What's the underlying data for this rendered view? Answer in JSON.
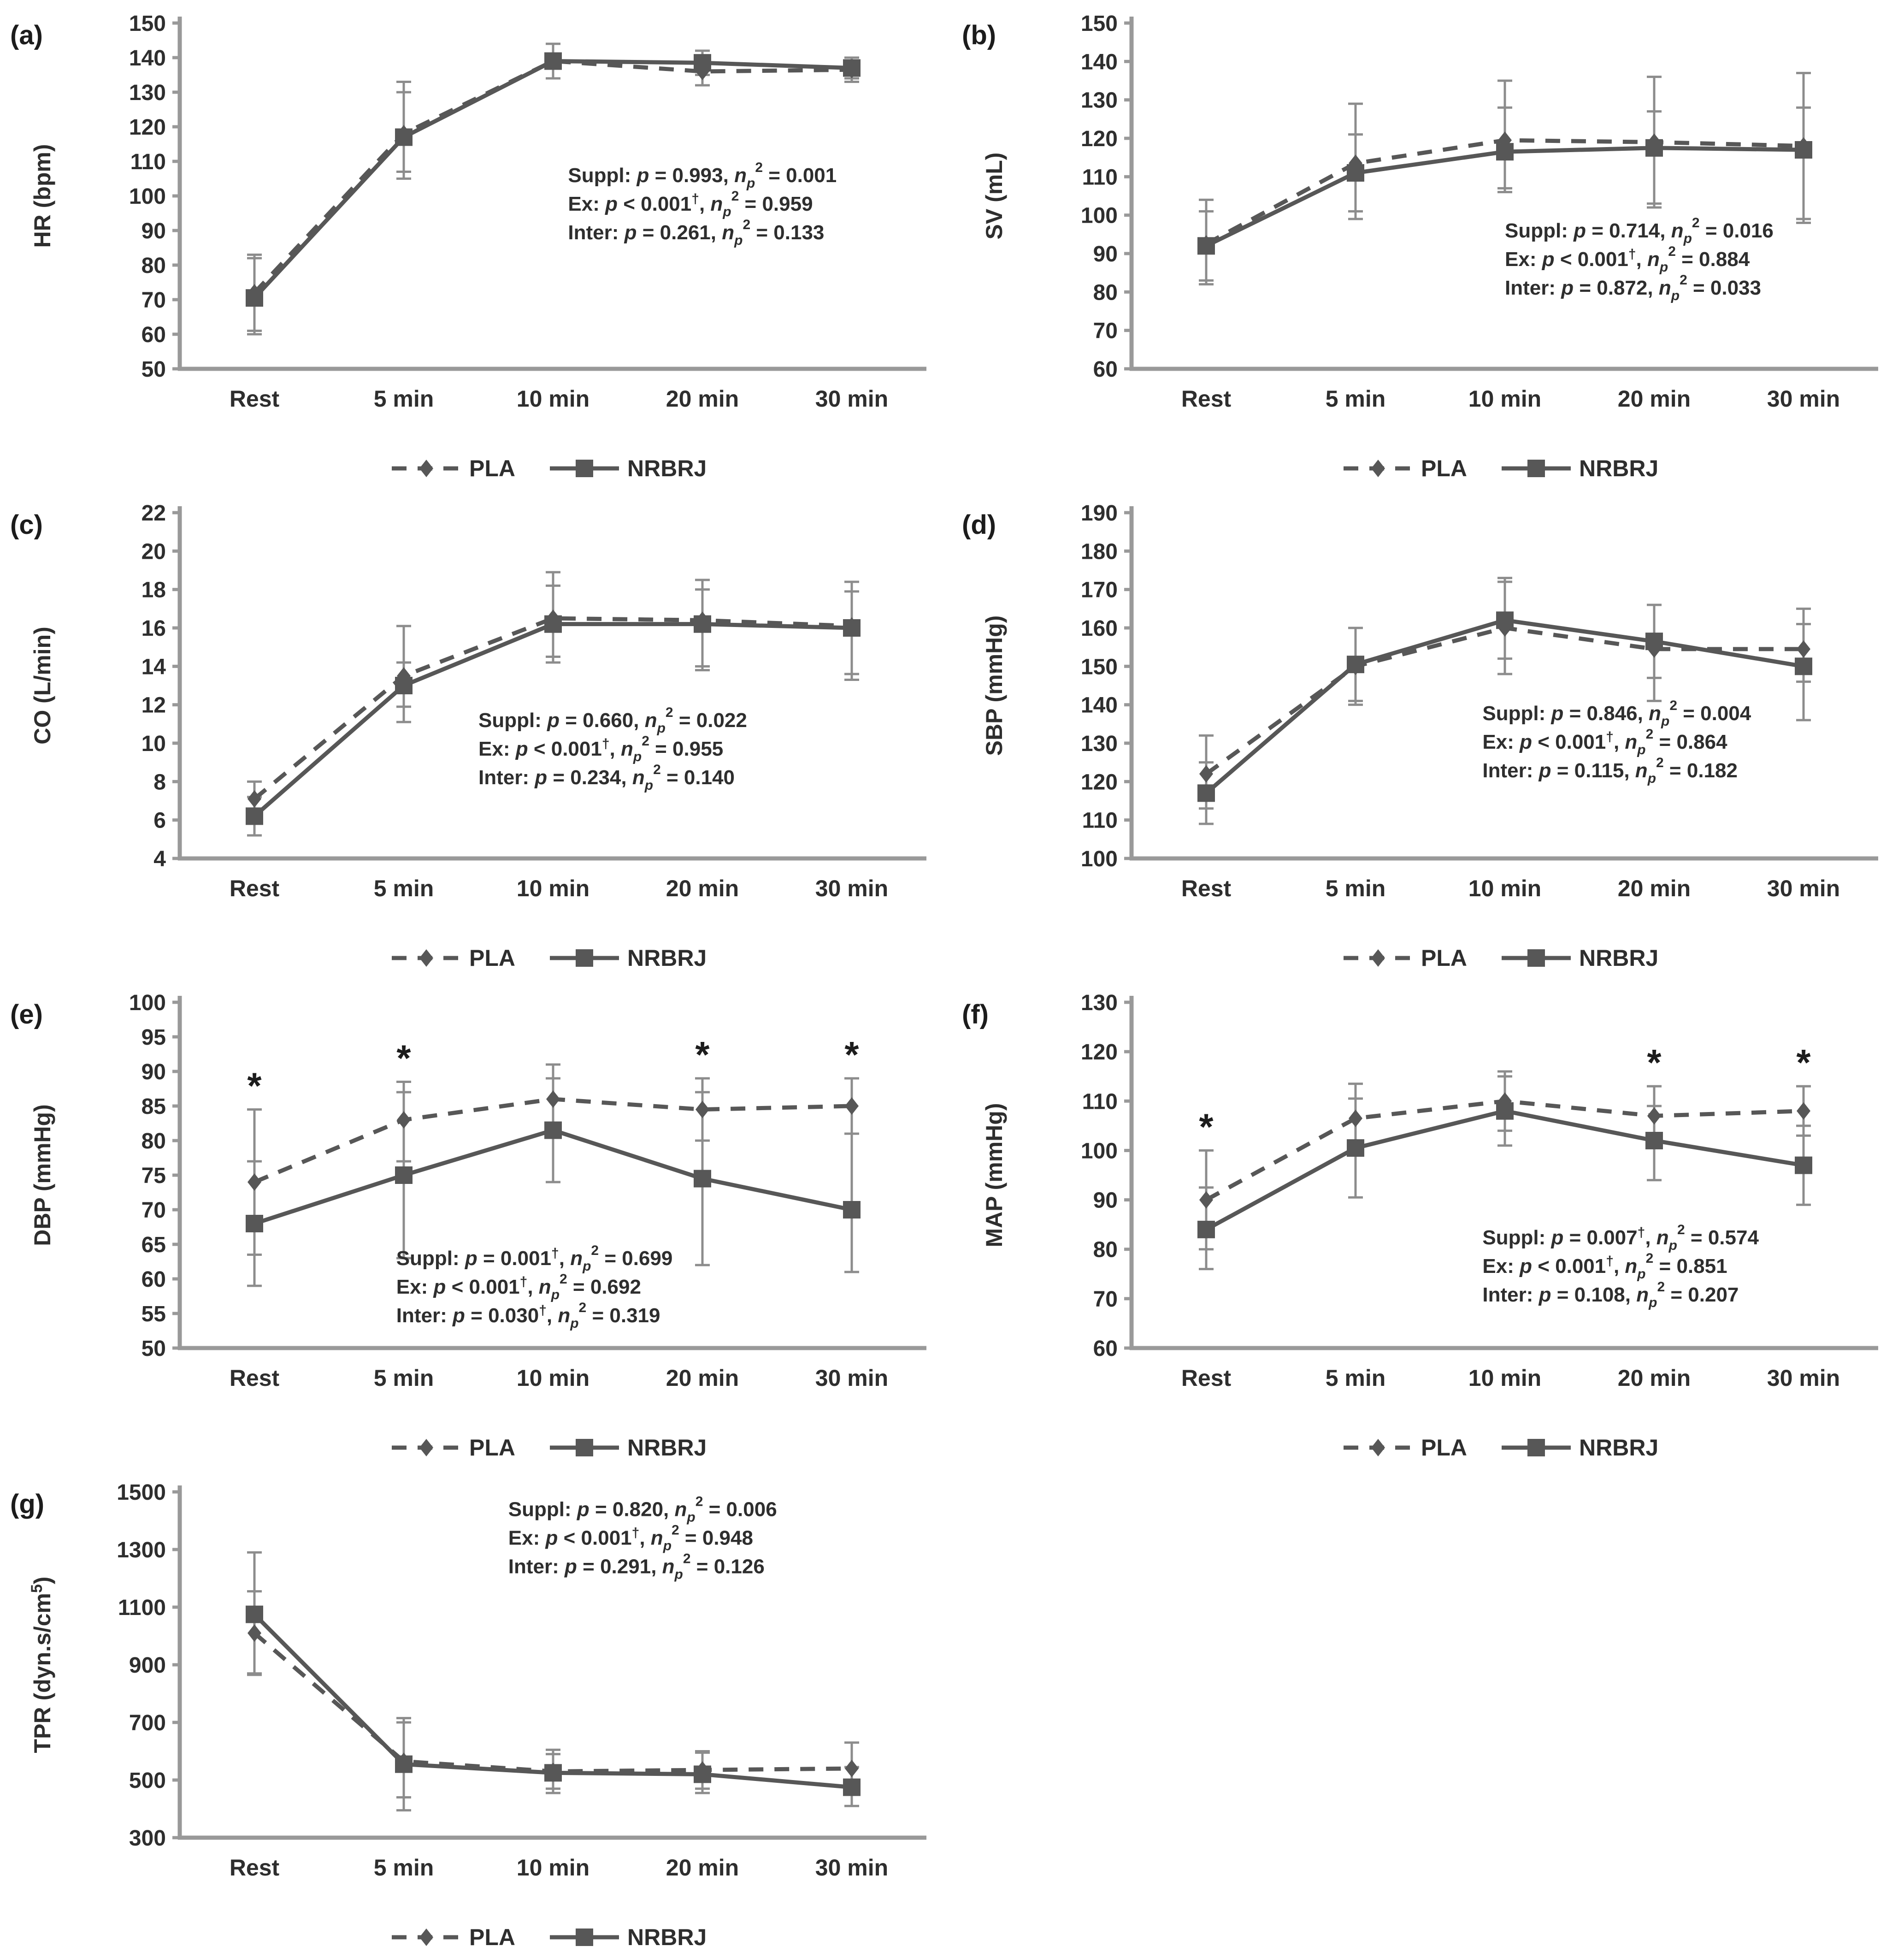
{
  "colors": {
    "series": "#575757",
    "error_bar": "#8c8c8c",
    "axis": "#999999",
    "text": "#2e2e2e",
    "panel_label": "#1c1c1c"
  },
  "icons": {
    "pla_marker": "diamond-marker-icon",
    "nrbrj_marker": "square-marker-icon",
    "significance": "asterisk-icon"
  },
  "chart_data": [
    {
      "id": "a",
      "type": "line",
      "panel_label": "(a)",
      "ylabel": {
        "pre": "HR (bpm)",
        "sup": "",
        "post": ""
      },
      "ylim": [
        50,
        150
      ],
      "ystep": 10,
      "grid": false,
      "legend_position": "bottom",
      "categories": [
        "Rest",
        "5 min",
        "10 min",
        "20 min",
        "30 min"
      ],
      "series": [
        {
          "name": "PLA",
          "dashed": true,
          "marker": "diamond",
          "values": [
            72,
            118,
            139,
            136,
            136.5
          ],
          "err_lo": [
            61,
            107,
            134,
            132,
            133
          ],
          "err_hi": [
            83,
            130,
            144,
            140,
            140
          ]
        },
        {
          "name": "NRBRJ",
          "dashed": false,
          "marker": "square",
          "values": [
            70.5,
            117,
            139,
            138.5,
            137
          ],
          "err_lo": [
            60,
            105,
            134,
            135,
            134
          ],
          "err_hi": [
            82,
            133,
            144,
            142,
            140
          ]
        }
      ],
      "asterisks": [],
      "stats": [
        {
          "label": "Suppl",
          "p_op": "=",
          "p": "0.993",
          "dagger": false,
          "eta_op": "=",
          "eta": "0.001"
        },
        {
          "label": "Ex",
          "p_op": "<",
          "p": "0.001",
          "dagger": true,
          "eta_op": "=",
          "eta": "0.959"
        },
        {
          "label": "Inter",
          "p_op": "=",
          "p": "0.261",
          "dagger": false,
          "eta_op": "=",
          "eta": "0.133"
        }
      ],
      "stats_pos": [
        0.52,
        0.46
      ]
    },
    {
      "id": "b",
      "type": "line",
      "panel_label": "(b)",
      "ylabel": {
        "pre": "SV (mL)",
        "sup": "",
        "post": ""
      },
      "ylim": [
        60,
        150
      ],
      "ystep": 10,
      "grid": false,
      "legend_position": "bottom",
      "categories": [
        "Rest",
        "5 min",
        "10 min",
        "20 min",
        "30 min"
      ],
      "series": [
        {
          "name": "PLA",
          "dashed": true,
          "marker": "diamond",
          "values": [
            92.5,
            113.5,
            119.5,
            119,
            118
          ],
          "err_lo": [
            83,
            101,
            107,
            103,
            99
          ],
          "err_hi": [
            104,
            129,
            135,
            136,
            137
          ]
        },
        {
          "name": "NRBRJ",
          "dashed": false,
          "marker": "square",
          "values": [
            92,
            111,
            116.5,
            117.5,
            117
          ],
          "err_lo": [
            82,
            99,
            106,
            102,
            98
          ],
          "err_hi": [
            101,
            121,
            128,
            127,
            128
          ]
        }
      ],
      "asterisks": [],
      "stats": [
        {
          "label": "Suppl",
          "p_op": "=",
          "p": "0.714",
          "dagger": false,
          "eta_op": "=",
          "eta": "0.016"
        },
        {
          "label": "Ex",
          "p_op": "<",
          "p": "0.001",
          "dagger": true,
          "eta_op": "=",
          "eta": "0.884"
        },
        {
          "label": "Inter",
          "p_op": "=",
          "p": "0.872",
          "dagger": false,
          "eta_op": "=",
          "eta": "0.033"
        }
      ],
      "stats_pos": [
        0.5,
        0.62
      ]
    },
    {
      "id": "c",
      "type": "line",
      "panel_label": "(c)",
      "ylabel": {
        "pre": "CO (L/min)",
        "sup": "",
        "post": ""
      },
      "ylim": [
        4,
        22
      ],
      "ystep": 2,
      "grid": false,
      "legend_position": "bottom",
      "categories": [
        "Rest",
        "5 min",
        "10 min",
        "20 min",
        "30 min"
      ],
      "series": [
        {
          "name": "PLA",
          "dashed": true,
          "marker": "diamond",
          "values": [
            7.1,
            13.5,
            16.5,
            16.4,
            16.1
          ],
          "err_lo": [
            6.3,
            11.9,
            14.5,
            14.0,
            13.6
          ],
          "err_hi": [
            8.0,
            16.1,
            18.9,
            18.5,
            18.4
          ]
        },
        {
          "name": "NRBRJ",
          "dashed": false,
          "marker": "square",
          "values": [
            6.2,
            13.0,
            16.2,
            16.2,
            16.0
          ],
          "err_lo": [
            5.2,
            11.1,
            14.2,
            13.8,
            13.3
          ],
          "err_hi": [
            7.2,
            14.2,
            18.2,
            18.0,
            17.9
          ]
        }
      ],
      "asterisks": [],
      "stats": [
        {
          "label": "Suppl",
          "p_op": "=",
          "p": "0.660",
          "dagger": false,
          "eta_op": "=",
          "eta": "0.022"
        },
        {
          "label": "Ex",
          "p_op": "<",
          "p": "0.001",
          "dagger": true,
          "eta_op": "=",
          "eta": "0.955"
        },
        {
          "label": "Inter",
          "p_op": "=",
          "p": "0.234",
          "dagger": false,
          "eta_op": "=",
          "eta": "0.140"
        }
      ],
      "stats_pos": [
        0.4,
        0.62
      ]
    },
    {
      "id": "d",
      "type": "line",
      "panel_label": "(d)",
      "ylabel": {
        "pre": "SBP (mmHg)",
        "sup": "",
        "post": ""
      },
      "ylim": [
        100,
        190
      ],
      "ystep": 10,
      "grid": false,
      "legend_position": "bottom",
      "categories": [
        "Rest",
        "5 min",
        "10 min",
        "20 min",
        "30 min"
      ],
      "series": [
        {
          "name": "PLA",
          "dashed": true,
          "marker": "diamond",
          "values": [
            122,
            150,
            160,
            154.5,
            154.5
          ],
          "err_lo": [
            113,
            140,
            148,
            141,
            146
          ],
          "err_hi": [
            132,
            160,
            172,
            166,
            165
          ]
        },
        {
          "name": "NRBRJ",
          "dashed": false,
          "marker": "square",
          "values": [
            117,
            150.5,
            162,
            156.5,
            150
          ],
          "err_lo": [
            109,
            141,
            152,
            147,
            136
          ],
          "err_hi": [
            125,
            160,
            173,
            166,
            161
          ]
        }
      ],
      "asterisks": [],
      "stats": [
        {
          "label": "Suppl",
          "p_op": "=",
          "p": "0.846",
          "dagger": false,
          "eta_op": "=",
          "eta": "0.004"
        },
        {
          "label": "Ex",
          "p_op": "<",
          "p": "0.001",
          "dagger": true,
          "eta_op": "=",
          "eta": "0.864"
        },
        {
          "label": "Inter",
          "p_op": "=",
          "p": "0.115",
          "dagger": false,
          "eta_op": "=",
          "eta": "0.182"
        }
      ],
      "stats_pos": [
        0.47,
        0.6
      ]
    },
    {
      "id": "e",
      "type": "line",
      "panel_label": "(e)",
      "ylabel": {
        "pre": "DBP (mmHg)",
        "sup": "",
        "post": ""
      },
      "ylim": [
        50,
        100
      ],
      "ystep": 5,
      "grid": false,
      "legend_position": "bottom",
      "categories": [
        "Rest",
        "5 min",
        "10 min",
        "20 min",
        "30 min"
      ],
      "series": [
        {
          "name": "PLA",
          "dashed": true,
          "marker": "diamond",
          "values": [
            74,
            83,
            86,
            84.5,
            85
          ],
          "err_lo": [
            63.5,
            77,
            81,
            80,
            81
          ],
          "err_hi": [
            84.5,
            88.5,
            91,
            89,
            89
          ]
        },
        {
          "name": "NRBRJ",
          "dashed": false,
          "marker": "square",
          "values": [
            68,
            75,
            81.5,
            74.5,
            70
          ],
          "err_lo": [
            59,
            63,
            74,
            62,
            61
          ],
          "err_hi": [
            77,
            87,
            89,
            87,
            81
          ]
        }
      ],
      "asterisks": [
        0,
        1,
        3,
        4
      ],
      "stats": [
        {
          "label": "Suppl",
          "p_op": "=",
          "p": "0.001",
          "dagger": true,
          "eta_op": "=",
          "eta": "0.699"
        },
        {
          "label": "Ex",
          "p_op": "<",
          "p": "0.001",
          "dagger": true,
          "eta_op": "=",
          "eta": "0.692"
        },
        {
          "label": "Inter",
          "p_op": "=",
          "p": "0.030",
          "dagger": true,
          "eta_op": "=",
          "eta": "0.319"
        }
      ],
      "stats_pos": [
        0.29,
        0.76
      ]
    },
    {
      "id": "f",
      "type": "line",
      "panel_label": "(f)",
      "ylabel": {
        "pre": "MAP (mmHg)",
        "sup": "",
        "post": ""
      },
      "ylim": [
        60,
        130
      ],
      "ystep": 10,
      "grid": false,
      "legend_position": "bottom",
      "categories": [
        "Rest",
        "5 min",
        "10 min",
        "20 min",
        "30 min"
      ],
      "series": [
        {
          "name": "PLA",
          "dashed": true,
          "marker": "diamond",
          "values": [
            90,
            106.5,
            110,
            107,
            108
          ],
          "err_lo": [
            80,
            100,
            104,
            101,
            103
          ],
          "err_hi": [
            100,
            113.5,
            116,
            113,
            113
          ]
        },
        {
          "name": "NRBRJ",
          "dashed": false,
          "marker": "square",
          "values": [
            84,
            100.5,
            108,
            102,
            97
          ],
          "err_lo": [
            76,
            90.5,
            101,
            94,
            89
          ],
          "err_hi": [
            92.5,
            110.5,
            115,
            109,
            105
          ]
        }
      ],
      "asterisks": [
        0,
        3,
        4
      ],
      "stats": [
        {
          "label": "Suppl",
          "p_op": "=",
          "p": "0.007",
          "dagger": true,
          "eta_op": "=",
          "eta": "0.574"
        },
        {
          "label": "Ex",
          "p_op": "<",
          "p": "0.001",
          "dagger": true,
          "eta_op": "=",
          "eta": "0.851"
        },
        {
          "label": "Inter",
          "p_op": "=",
          "p": "0.108",
          "dagger": false,
          "eta_op": "=",
          "eta": "0.207"
        }
      ],
      "stats_pos": [
        0.47,
        0.7
      ]
    },
    {
      "id": "g",
      "type": "line",
      "panel_label": "(g)",
      "ylabel": {
        "pre": "TPR (dyn.s/cm",
        "sup": "5",
        "post": ")"
      },
      "ylim": [
        300,
        1500
      ],
      "ystep": 200,
      "grid": false,
      "legend_position": "bottom",
      "categories": [
        "Rest",
        "5 min",
        "10 min",
        "20 min",
        "30 min"
      ],
      "series": [
        {
          "name": "PLA",
          "dashed": true,
          "marker": "diamond",
          "values": [
            1010,
            565,
            530,
            535,
            540
          ],
          "err_lo": [
            865,
            440,
            470,
            470,
            480
          ],
          "err_hi": [
            1155,
            700,
            590,
            600,
            630
          ]
        },
        {
          "name": "NRBRJ",
          "dashed": false,
          "marker": "square",
          "values": [
            1075,
            555,
            525,
            520,
            475
          ],
          "err_lo": [
            870,
            395,
            455,
            455,
            410
          ],
          "err_hi": [
            1290,
            715,
            605,
            595,
            545
          ]
        }
      ],
      "asterisks": [],
      "stats": [
        {
          "label": "Suppl",
          "p_op": "=",
          "p": "0.820",
          "dagger": false,
          "eta_op": "=",
          "eta": "0.006"
        },
        {
          "label": "Ex",
          "p_op": "<",
          "p": "0.001",
          "dagger": true,
          "eta_op": "=",
          "eta": "0.948"
        },
        {
          "label": "Inter",
          "p_op": "=",
          "p": "0.291",
          "dagger": false,
          "eta_op": "=",
          "eta": "0.126"
        }
      ],
      "stats_pos": [
        0.44,
        0.07
      ]
    }
  ]
}
